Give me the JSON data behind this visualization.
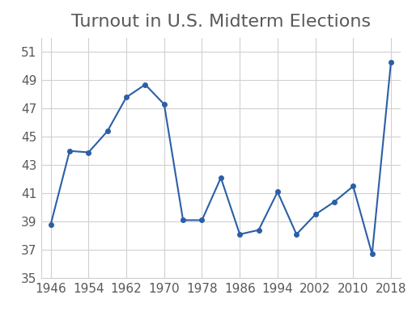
{
  "years": [
    1946,
    1950,
    1954,
    1958,
    1962,
    1966,
    1970,
    1974,
    1978,
    1982,
    1986,
    1990,
    1994,
    1998,
    2002,
    2006,
    2010,
    2014,
    2018
  ],
  "turnout": [
    38.8,
    44.0,
    43.9,
    45.4,
    47.8,
    48.7,
    47.3,
    39.1,
    39.1,
    42.1,
    38.1,
    38.4,
    41.1,
    38.1,
    39.5,
    40.4,
    41.5,
    36.7,
    50.3
  ],
  "title": "Turnout in U.S. Midterm Elections",
  "line_color": "#2B5FA5",
  "marker": "o",
  "marker_size": 4,
  "xlim": [
    1944,
    2020
  ],
  "ylim": [
    35,
    52
  ],
  "yticks": [
    35,
    37,
    39,
    41,
    43,
    45,
    47,
    49,
    51
  ],
  "xticks": [
    1946,
    1954,
    1962,
    1970,
    1978,
    1986,
    1994,
    2002,
    2010,
    2018
  ],
  "grid": true,
  "background_color": "#ffffff",
  "title_fontsize": 16,
  "tick_fontsize": 11,
  "title_color": "#595959",
  "tick_color": "#595959",
  "grid_color": "#d0d0d0",
  "linewidth": 1.5
}
